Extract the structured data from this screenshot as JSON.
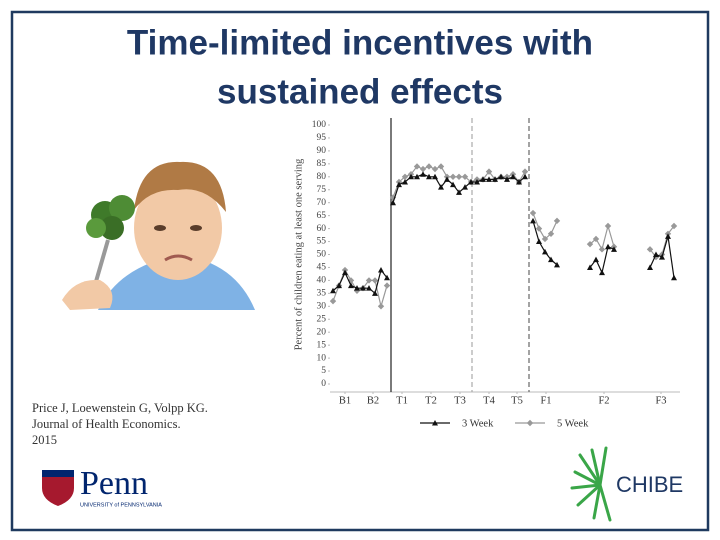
{
  "slide": {
    "title_lines": [
      "Time-limited incentives with",
      "sustained effects"
    ],
    "citation_lines": [
      "Price J, Loewenstein G, Volpp KG.",
      "Journal of Health Economics.",
      "2015"
    ],
    "penn_logo": "Penn",
    "penn_subtitle": "UNIVERSITY of PENNSYLVANIA",
    "chibe_logo": "CHIBE"
  },
  "chart_data": {
    "type": "line",
    "y_label": "Percent of children eating at least one serving",
    "xlim": [
      0,
      350
    ],
    "ylim": [
      0,
      100
    ],
    "xticks": [
      {
        "value": 15,
        "label": "B1"
      },
      {
        "value": 43,
        "label": "B2"
      },
      {
        "value": 72,
        "label": "T1"
      },
      {
        "value": 101,
        "label": "T2"
      },
      {
        "value": 130,
        "label": "T3"
      },
      {
        "value": 159,
        "label": "T4"
      },
      {
        "value": 187,
        "label": "T5"
      },
      {
        "value": 216,
        "label": "F1"
      },
      {
        "value": 274,
        "label": "F2"
      },
      {
        "value": 331,
        "label": "F3"
      }
    ],
    "yticks": [
      0,
      5,
      10,
      15,
      20,
      25,
      30,
      35,
      40,
      45,
      50,
      55,
      60,
      65,
      70,
      75,
      80,
      85,
      90,
      95,
      100
    ],
    "phase_lines": [
      {
        "x": 61,
        "style": "solid"
      },
      {
        "x": 142,
        "style": "dashed"
      },
      {
        "x": 199,
        "style": "dashed"
      }
    ],
    "legend": "bottom",
    "x": [
      3,
      9,
      15,
      21,
      27,
      33,
      39,
      45,
      51,
      57,
      59,
      63,
      69,
      75,
      81,
      87,
      93,
      99,
      105,
      111,
      117,
      123,
      129,
      135,
      141,
      147,
      153,
      159,
      165,
      171,
      177,
      183,
      189,
      195,
      200,
      203,
      209,
      215,
      221,
      227,
      240,
      260,
      266,
      272,
      278,
      284,
      300,
      320,
      326,
      332,
      338,
      344
    ],
    "series": [
      {
        "name": "3 Week",
        "color": "#111111",
        "marker": "triangle",
        "values": [
          36,
          38,
          43,
          38,
          37,
          37,
          37,
          35,
          44,
          41,
          null,
          70,
          77,
          78,
          80,
          80,
          81,
          80,
          80,
          76,
          79,
          77,
          74,
          76,
          78,
          78,
          79,
          79,
          79,
          80,
          79,
          80,
          78,
          80,
          null,
          63,
          55,
          51,
          48,
          46,
          null,
          45,
          48,
          43,
          53,
          52,
          null,
          45,
          50,
          49,
          57,
          41
        ]
      },
      {
        "name": "5 Week",
        "color": "#999999",
        "marker": "diamond",
        "values": [
          32,
          38,
          44,
          40,
          36,
          37,
          40,
          40,
          30,
          38,
          null,
          72,
          78,
          80,
          81,
          84,
          83,
          84,
          83,
          84,
          80,
          80,
          80,
          80,
          78,
          79,
          79,
          82,
          79,
          80,
          80,
          81,
          78,
          82,
          null,
          66,
          60,
          56,
          58,
          63,
          null,
          54,
          56,
          52,
          61,
          53,
          null,
          52,
          49,
          50,
          58,
          61
        ]
      }
    ]
  }
}
